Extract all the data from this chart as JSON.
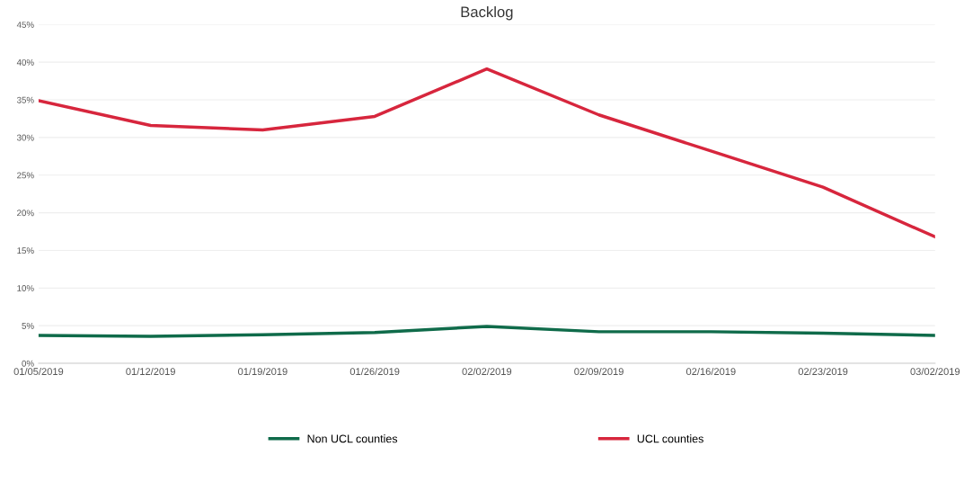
{
  "chart_data": {
    "type": "line",
    "title": "Backlog",
    "categories": [
      "01/05/2019",
      "01/12/2019",
      "01/19/2019",
      "01/26/2019",
      "02/02/2019",
      "02/09/2019",
      "02/16/2019",
      "02/23/2019",
      "03/02/2019"
    ],
    "series": [
      {
        "name": "Non UCL counties",
        "color": "#0f6b4a",
        "values": [
          3.7,
          3.6,
          3.8,
          4.1,
          4.9,
          4.2,
          4.2,
          4.0,
          3.7
        ]
      },
      {
        "name": "UCL counties",
        "color": "#d7263d",
        "values": [
          34.9,
          31.6,
          31.0,
          32.8,
          39.1,
          33.0,
          28.2,
          23.4,
          16.8
        ]
      }
    ],
    "ylim": [
      0,
      45
    ],
    "yticks": [
      {
        "value": 0,
        "label": "0%"
      },
      {
        "value": 5,
        "label": "5%"
      },
      {
        "value": 10,
        "label": "10%"
      },
      {
        "value": 15,
        "label": "15%"
      },
      {
        "value": 20,
        "label": "20%"
      },
      {
        "value": 25,
        "label": "25%"
      },
      {
        "value": 30,
        "label": "30%"
      },
      {
        "value": 35,
        "label": "35%"
      },
      {
        "value": 40,
        "label": "40%"
      },
      {
        "value": 45,
        "label": "45%"
      }
    ],
    "grid": "y",
    "legend": "bottom",
    "marker": "none",
    "line_style": "solid"
  }
}
